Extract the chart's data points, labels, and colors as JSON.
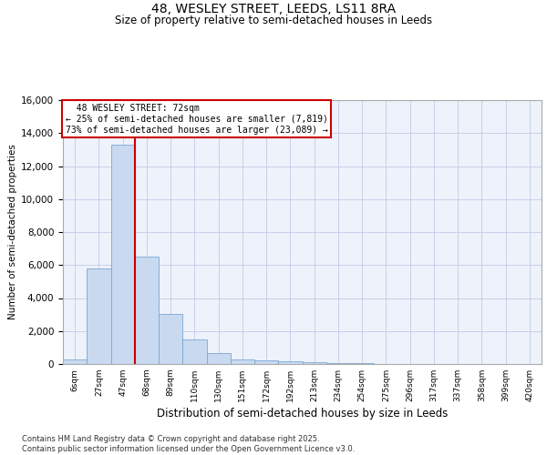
{
  "title": "48, WESLEY STREET, LEEDS, LS11 8RA",
  "subtitle": "Size of property relative to semi-detached houses in Leeds",
  "xlabel": "Distribution of semi-detached houses by size in Leeds",
  "ylabel": "Number of semi-detached properties",
  "bin_labels": [
    "6sqm",
    "27sqm",
    "47sqm",
    "68sqm",
    "89sqm",
    "110sqm",
    "130sqm",
    "151sqm",
    "172sqm",
    "192sqm",
    "213sqm",
    "234sqm",
    "254sqm",
    "275sqm",
    "296sqm",
    "317sqm",
    "337sqm",
    "358sqm",
    "399sqm",
    "420sqm"
  ],
  "bar_heights": [
    300,
    5800,
    13300,
    6500,
    3050,
    1500,
    650,
    300,
    200,
    150,
    100,
    50,
    30,
    20,
    0,
    0,
    0,
    0,
    0,
    0
  ],
  "bar_color": "#c9d9f0",
  "bar_edge_color": "#7aa6d4",
  "property_label": "48 WESLEY STREET: 72sqm",
  "smaller_pct": "25%",
  "smaller_count": "7,819",
  "larger_pct": "73%",
  "larger_count": "23,089",
  "vline_color": "#cc0000",
  "annotation_box_color": "#cc0000",
  "footer_line1": "Contains HM Land Registry data © Crown copyright and database right 2025.",
  "footer_line2": "Contains public sector information licensed under the Open Government Licence v3.0.",
  "ylim": [
    0,
    16000
  ],
  "yticks": [
    0,
    2000,
    4000,
    6000,
    8000,
    10000,
    12000,
    14000,
    16000
  ],
  "background_color": "#eef2fb",
  "grid_color": "#c8cfe8",
  "vline_bin_index": 3
}
